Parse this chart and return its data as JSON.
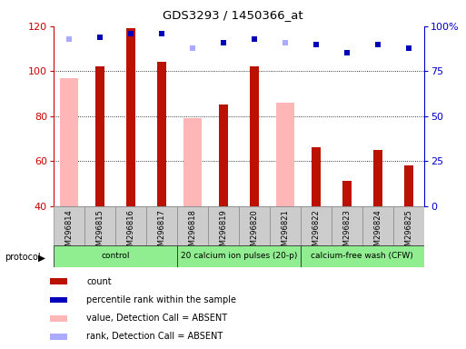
{
  "title": "GDS3293 / 1450366_at",
  "samples": [
    "GSM296814",
    "GSM296815",
    "GSM296816",
    "GSM296817",
    "GSM296818",
    "GSM296819",
    "GSM296820",
    "GSM296821",
    "GSM296822",
    "GSM296823",
    "GSM296824",
    "GSM296825"
  ],
  "count": [
    null,
    102,
    119,
    104,
    null,
    85,
    102,
    null,
    66,
    51,
    65,
    58
  ],
  "value_absent": [
    97,
    null,
    null,
    null,
    79,
    null,
    null,
    86,
    null,
    null,
    null,
    null
  ],
  "percentile_rank": [
    null,
    94,
    96,
    96,
    null,
    91,
    93,
    null,
    90,
    85,
    90,
    88
  ],
  "rank_absent": [
    93,
    null,
    null,
    null,
    88,
    null,
    null,
    91,
    null,
    null,
    null,
    null
  ],
  "ymin": 40,
  "ymax": 120,
  "y2min": 0,
  "y2max": 100,
  "count_color": "#bb1100",
  "value_absent_color": "#ffb6b6",
  "percentile_color": "#0000bb",
  "rank_absent_color": "#aaaaff",
  "bg_color": "#ffffff",
  "tick_label_color_left": "#cc0000",
  "tick_label_color_right": "#0000cc",
  "legend_items": [
    {
      "label": "count",
      "color": "#bb1100"
    },
    {
      "label": "percentile rank within the sample",
      "color": "#0000bb"
    },
    {
      "label": "value, Detection Call = ABSENT",
      "color": "#ffb6b6"
    },
    {
      "label": "rank, Detection Call = ABSENT",
      "color": "#aaaaff"
    }
  ],
  "protocol_groups": [
    {
      "label": "control",
      "start": 0,
      "end": 4,
      "color": "#90ee90"
    },
    {
      "label": "20 calcium ion pulses (20-p)",
      "start": 4,
      "end": 8,
      "color": "#90ee90"
    },
    {
      "label": "calcium-free wash (CFW)",
      "start": 8,
      "end": 12,
      "color": "#90ee90"
    }
  ]
}
